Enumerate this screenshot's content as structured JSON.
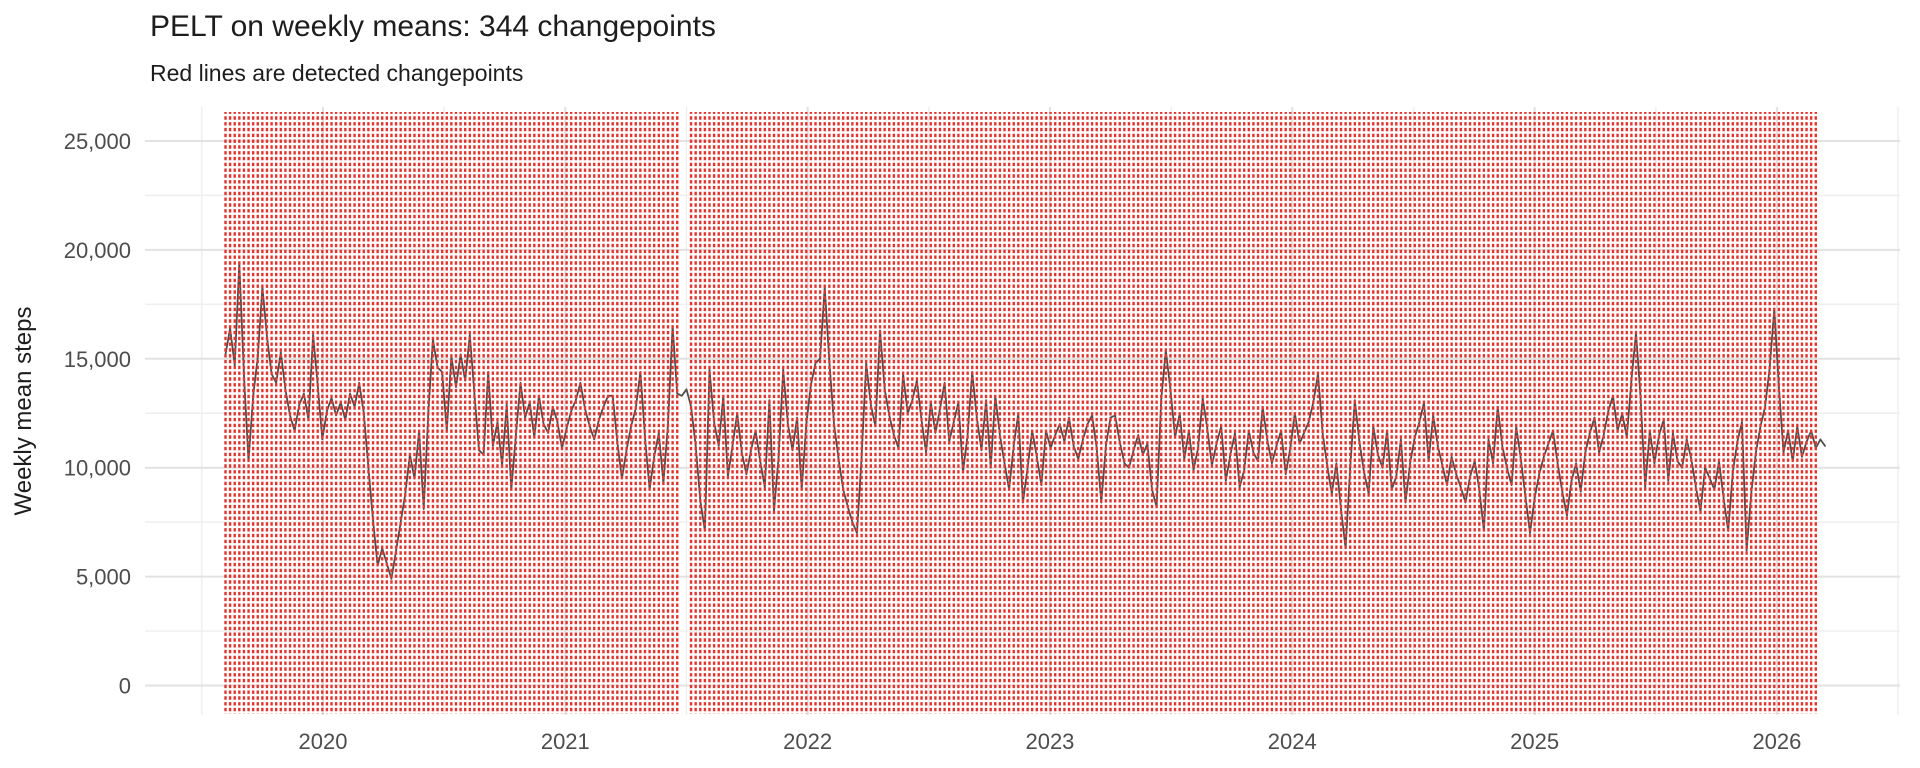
{
  "chart_data": {
    "type": "line",
    "title": "PELT on weekly means: 344 changepoints",
    "subtitle": "Red lines are detected changepoints",
    "ylabel": "Weekly mean steps",
    "xlabel": "",
    "x_unit": "week_index_from_2019_08",
    "x_tick_labels": [
      "2020",
      "2021",
      "2022",
      "2023",
      "2024",
      "2025",
      "2026"
    ],
    "x_tick_weeks": [
      21.15,
      73.72,
      126.29,
      178.86,
      231.43,
      284.0,
      336.57
    ],
    "x_minor_weeks": [
      -5.13,
      47.44,
      100.01,
      152.58,
      205.15,
      257.72,
      310.29,
      362.86
    ],
    "y_tick_labels": [
      "0",
      "5,000",
      "10,000",
      "15,000",
      "20,000",
      "25,000"
    ],
    "y_tick_values": [
      0,
      5000,
      10000,
      15000,
      20000,
      25000
    ],
    "y_minor_values": [
      2500,
      7500,
      12500,
      17500,
      22500
    ],
    "y_range_shown": [
      0,
      25000
    ],
    "grid": true,
    "legend": false,
    "series": [
      {
        "name": "Weekly mean steps",
        "color": "#4f4f4f",
        "values": [
          15200,
          16400,
          14700,
          19400,
          14300,
          10300,
          13300,
          15100,
          18300,
          16000,
          14300,
          13900,
          15300,
          13600,
          12400,
          11700,
          12900,
          13400,
          12200,
          16100,
          13800,
          11300,
          12600,
          13200,
          12400,
          13000,
          12200,
          13400,
          12800,
          13900,
          12500,
          10000,
          7600,
          5500,
          6300,
          5600,
          4900,
          6200,
          7500,
          8800,
          10600,
          9500,
          11700,
          8100,
          12500,
          15900,
          14600,
          14400,
          11700,
          15100,
          13700,
          15200,
          14000,
          16100,
          13400,
          10800,
          10600,
          14400,
          11000,
          12100,
          10100,
          12900,
          9000,
          11500,
          13900,
          12300,
          13000,
          11400,
          13300,
          12000,
          11600,
          12800,
          12100,
          10900,
          11800,
          12600,
          13100,
          13900,
          12700,
          11900,
          11300,
          12200,
          12800,
          13300,
          13300,
          11200,
          9500,
          10800,
          11900,
          12700,
          14400,
          11400,
          9000,
          10500,
          11600,
          9300,
          12000,
          16500,
          13400,
          13300,
          13600,
          12800,
          11000,
          8500,
          7100,
          14500,
          12100,
          11000,
          13300,
          9600,
          11000,
          12500,
          10700,
          9700,
          10800,
          11700,
          10300,
          9100,
          13100,
          8000,
          10500,
          14500,
          12000,
          10800,
          12300,
          9000,
          12000,
          13800,
          14800,
          15000,
          18300,
          14900,
          12000,
          10400,
          9000,
          8200,
          7500,
          7000,
          10500,
          14800,
          12900,
          11900,
          16300,
          13600,
          12400,
          11500,
          10900,
          14300,
          12500,
          13100,
          14000,
          12200,
          10700,
          13000,
          11600,
          12700,
          13900,
          11200,
          12100,
          13000,
          9800,
          11500,
          14400,
          12300,
          10800,
          13100,
          10000,
          13300,
          11500,
          10200,
          9000,
          11000,
          12500,
          8400,
          10000,
          11700,
          10500,
          9200,
          11700,
          10900,
          11500,
          12000,
          11200,
          12300,
          11000,
          10400,
          11300,
          12000,
          12400,
          10900,
          8400,
          11000,
          12300,
          12400,
          11200,
          10200,
          10000,
          10800,
          11500,
          10600,
          11100,
          9000,
          8200,
          13100,
          15400,
          13600,
          11400,
          12500,
          10400,
          11700,
          9900,
          10900,
          13200,
          11800,
          10100,
          11100,
          11900,
          9400,
          10600,
          11600,
          9100,
          9900,
          11700,
          10700,
          10300,
          12800,
          11300,
          10200,
          11000,
          11700,
          9700,
          10900,
          12500,
          11100,
          11600,
          12100,
          13000,
          14300,
          11600,
          10100,
          8800,
          10200,
          8100,
          6300,
          10000,
          13100,
          11200,
          9800,
          8800,
          11900,
          10600,
          10000,
          11700,
          9000,
          9600,
          11300,
          8400,
          10200,
          11400,
          12100,
          13000,
          10300,
          12400,
          11000,
          10100,
          9200,
          10500,
          9700,
          9100,
          8400,
          9600,
          10300,
          9000,
          7100,
          11300,
          10200,
          12800,
          11000,
          10000,
          9200,
          11900,
          10400,
          8700,
          7000,
          8600,
          9700,
          10500,
          11100,
          11700,
          10200,
          8900,
          7800,
          9400,
          10200,
          8900,
          10700,
          11600,
          12300,
          10700,
          11500,
          12600,
          13300,
          11700,
          12500,
          11400,
          14000,
          16200,
          13200,
          9100,
          11700,
          10200,
          11500,
          12200,
          9400,
          11600,
          10300,
          10000,
          11300,
          10400,
          9100,
          8000,
          10000,
          9500,
          9000,
          10300,
          8600,
          7100,
          9800,
          11200,
          12100,
          6200,
          8800,
          10700,
          11900,
          12800,
          14600,
          17300,
          13700,
          10700,
          11700,
          10300,
          11900,
          10500,
          11200,
          11700,
          10900,
          11300,
          11000
        ]
      }
    ],
    "changepoints": {
      "count": 344,
      "style": "dashed",
      "color": "#e0352e",
      "weeks_from": 0,
      "weeks_to": 345,
      "skipped_weeks": [
        99,
        100
      ]
    },
    "grid_major_color": "#e2e2e2",
    "grid_minor_color": "#eeeeee",
    "axis_text_color": "#4d4d4d"
  }
}
